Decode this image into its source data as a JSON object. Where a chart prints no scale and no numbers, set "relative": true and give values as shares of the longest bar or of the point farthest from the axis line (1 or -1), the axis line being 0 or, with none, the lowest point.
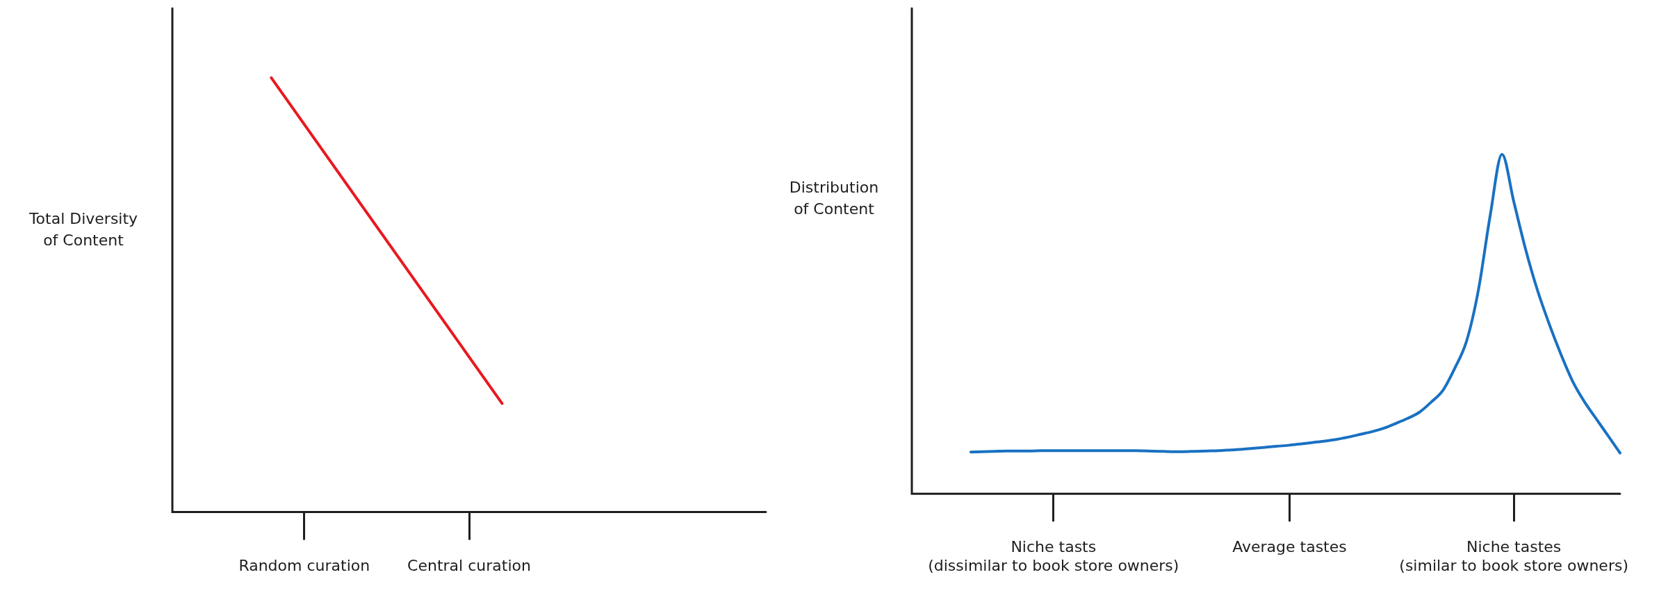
{
  "chart_data": [
    {
      "type": "line",
      "relative": true,
      "ylabel": "Total Diversity\nof Content",
      "legend": false,
      "grid": false,
      "categories": [
        null,
        null,
        null,
        null,
        "Random curation",
        null,
        null,
        null,
        null,
        "Central curation",
        null,
        null,
        null,
        null,
        null,
        null,
        null,
        null,
        null
      ],
      "series": [
        {
          "color": "#e8191f",
          "values": [
            null,
            null,
            null,
            1,
            null,
            null,
            null,
            null,
            null,
            null,
            0.25,
            null,
            null,
            null,
            null,
            null,
            null,
            null,
            null
          ]
        }
      ]
    },
    {
      "type": "line",
      "relative": true,
      "ylabel": "Distribution\nof Content",
      "legend": false,
      "grid": false,
      "categories": [
        null,
        null,
        null,
        null,
        null,
        null,
        null,
        null,
        null,
        null,
        null,
        null,
        "Niche tasts\n(dissimilar to book store owners)",
        null,
        null,
        null,
        null,
        null,
        null,
        null,
        null,
        null,
        null,
        null,
        null,
        null,
        null,
        null,
        null,
        null,
        null,
        null,
        "Average tastes",
        null,
        null,
        null,
        null,
        null,
        null,
        null,
        null,
        null,
        null,
        null,
        null,
        null,
        null,
        null,
        null,
        null,
        null,
        "Niche tastes\n(similar to book store owners)",
        null,
        null,
        null,
        null,
        null,
        null,
        null,
        null,
        null
      ],
      "series": [
        {
          "color": "#1971c2",
          "values": [
            null,
            null,
            null,
            null,
            null,
            0.123,
            0.124,
            0.125,
            0.126,
            0.126,
            0.126,
            0.127,
            0.127,
            0.127,
            0.127,
            0.127,
            0.127,
            0.127,
            0.127,
            0.127,
            0.126,
            0.125,
            0.124,
            0.124,
            0.125,
            0.126,
            0.127,
            0.129,
            0.131,
            0.134,
            0.137,
            0.14,
            0.143,
            0.147,
            0.151,
            0.155,
            0.16,
            0.167,
            0.175,
            0.183,
            0.193,
            0.207,
            0.222,
            0.24,
            0.27,
            0.305,
            0.37,
            0.45,
            0.6,
            0.82,
            1,
            0.86,
            0.72,
            0.6,
            0.5,
            0.41,
            0.33,
            0.27,
            0.22,
            0.17,
            0.12
          ]
        }
      ]
    }
  ]
}
